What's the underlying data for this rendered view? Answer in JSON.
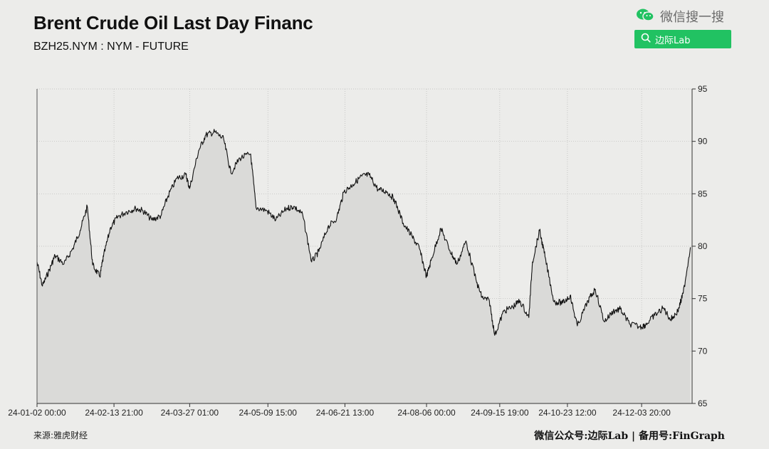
{
  "header": {
    "title": "Brent Crude Oil Last Day Financ",
    "subtitle": "BZH25.NYM : NYM - FUTURE"
  },
  "wechat": {
    "label": "微信搜一搜",
    "search_text": "边际Lab",
    "icon": "wechat-icon",
    "accent": "#21c262"
  },
  "footer": {
    "source": "来源:雅虎财经",
    "credit": "微信公众号:边际Lab | 备用号:FinGraph"
  },
  "chart_data": {
    "type": "area",
    "title": "Brent Crude Oil Last Day Financ",
    "ylim": [
      65,
      95
    ],
    "yticks": [
      65,
      70,
      75,
      80,
      85,
      90,
      95
    ],
    "xlim": [
      "2024-01-02 00:00",
      "2024-12-31 23:00"
    ],
    "xticks": [
      "24-01-02 00:00",
      "24-02-13 21:00",
      "24-03-27 01:00",
      "24-05-09 15:00",
      "24-06-21 13:00",
      "24-08-06 00:00",
      "24-09-15 19:00",
      "24-10-23 12:00",
      "24-12-03 20:00"
    ],
    "grid": true,
    "line_color": "#111111",
    "fill_color": "#dadad8",
    "series": [
      {
        "x": [
          "2024-01-02",
          "2024-01-05",
          "2024-01-09",
          "2024-01-12",
          "2024-01-17",
          "2024-01-22",
          "2024-01-26",
          "2024-01-30",
          "2024-02-02",
          "2024-02-06",
          "2024-02-08",
          "2024-02-12",
          "2024-02-16",
          "2024-02-21",
          "2024-02-26",
          "2024-03-01",
          "2024-03-06",
          "2024-03-11",
          "2024-03-15",
          "2024-03-20",
          "2024-03-25",
          "2024-03-27",
          "2024-04-01",
          "2024-04-05",
          "2024-04-10",
          "2024-04-15",
          "2024-04-19",
          "2024-04-24",
          "2024-04-30",
          "2024-05-03",
          "2024-05-09",
          "2024-05-14",
          "2024-05-20",
          "2024-05-24",
          "2024-05-29",
          "2024-06-03",
          "2024-06-07",
          "2024-06-12",
          "2024-06-17",
          "2024-06-21",
          "2024-06-26",
          "2024-07-01",
          "2024-07-05",
          "2024-07-10",
          "2024-07-15",
          "2024-07-19",
          "2024-07-24",
          "2024-07-29",
          "2024-08-02",
          "2024-08-06",
          "2024-08-09",
          "2024-08-14",
          "2024-08-19",
          "2024-08-23",
          "2024-08-28",
          "2024-09-03",
          "2024-09-06",
          "2024-09-10",
          "2024-09-13",
          "2024-09-18",
          "2024-09-23",
          "2024-09-27",
          "2024-10-02",
          "2024-10-04",
          "2024-10-08",
          "2024-10-11",
          "2024-10-16",
          "2024-10-21",
          "2024-10-25",
          "2024-10-29",
          "2024-11-04",
          "2024-11-08",
          "2024-11-13",
          "2024-11-18",
          "2024-11-22",
          "2024-11-27",
          "2024-12-03",
          "2024-12-06",
          "2024-12-11",
          "2024-12-16",
          "2024-12-20",
          "2024-12-24",
          "2024-12-27",
          "2024-12-31"
        ],
        "y": [
          78.5,
          76.2,
          77.8,
          79.1,
          78.3,
          79.8,
          81.5,
          83.8,
          78.2,
          77.1,
          79.0,
          81.8,
          82.8,
          83.3,
          83.6,
          83.4,
          82.5,
          82.9,
          84.8,
          86.5,
          86.8,
          85.5,
          89.1,
          90.6,
          90.9,
          90.2,
          87.0,
          88.4,
          88.8,
          83.7,
          83.4,
          82.5,
          83.6,
          83.8,
          83.0,
          78.5,
          79.5,
          81.8,
          82.7,
          85.2,
          85.9,
          86.7,
          86.8,
          85.4,
          85.2,
          84.5,
          82.2,
          80.9,
          79.8,
          77.1,
          78.9,
          81.7,
          79.6,
          78.3,
          80.5,
          76.5,
          75.1,
          74.8,
          71.5,
          73.8,
          74.2,
          74.8,
          73.2,
          78.5,
          81.5,
          79.0,
          74.7,
          74.6,
          75.3,
          72.4,
          74.8,
          75.9,
          72.8,
          73.8,
          74.0,
          72.6,
          72.3,
          72.5,
          73.4,
          74.1,
          73.0,
          73.8,
          75.5,
          79.9
        ]
      }
    ]
  }
}
